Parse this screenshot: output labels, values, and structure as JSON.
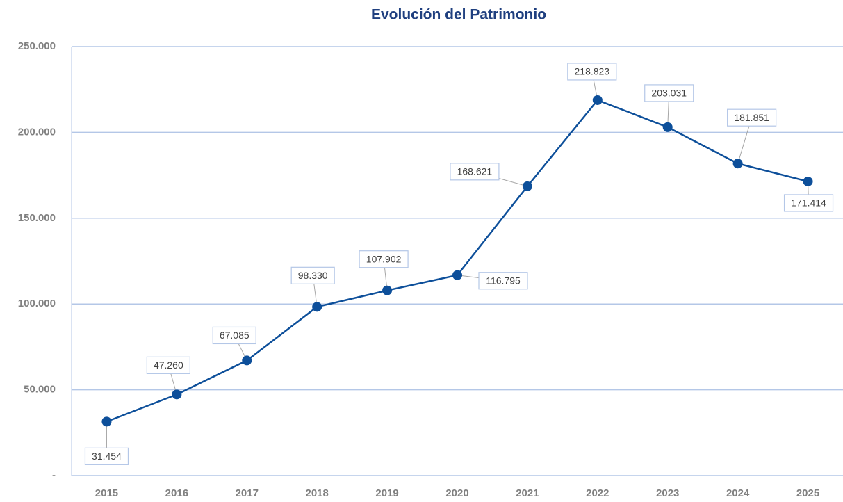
{
  "chart_data": {
    "type": "line",
    "title": "Evolución del Patrimonio",
    "categories": [
      "2015",
      "2016",
      "2017",
      "2018",
      "2019",
      "2020",
      "2021",
      "2022",
      "2023",
      "2024",
      "2025"
    ],
    "series": [
      {
        "color": "#0d4f9a",
        "values": [
          31454,
          47260,
          67085,
          98330,
          107902,
          116795,
          168621,
          218823,
          203031,
          181851,
          171414
        ],
        "value_labels": [
          "31.454",
          "47.260",
          "67.085",
          "98.330",
          "107.902",
          "116.795",
          "168.621",
          "218.823",
          "203.031",
          "181.851",
          "171.414"
        ]
      }
    ],
    "ylim": [
      0,
      250000
    ],
    "yticks": [
      {
        "value": 0,
        "label": "-"
      },
      {
        "value": 50000,
        "label": "50.000"
      },
      {
        "value": 100000,
        "label": "100.000"
      },
      {
        "value": 150000,
        "label": "150.000"
      },
      {
        "value": 200000,
        "label": "200.000"
      },
      {
        "value": 250000,
        "label": "250.000"
      }
    ],
    "grid": true
  }
}
